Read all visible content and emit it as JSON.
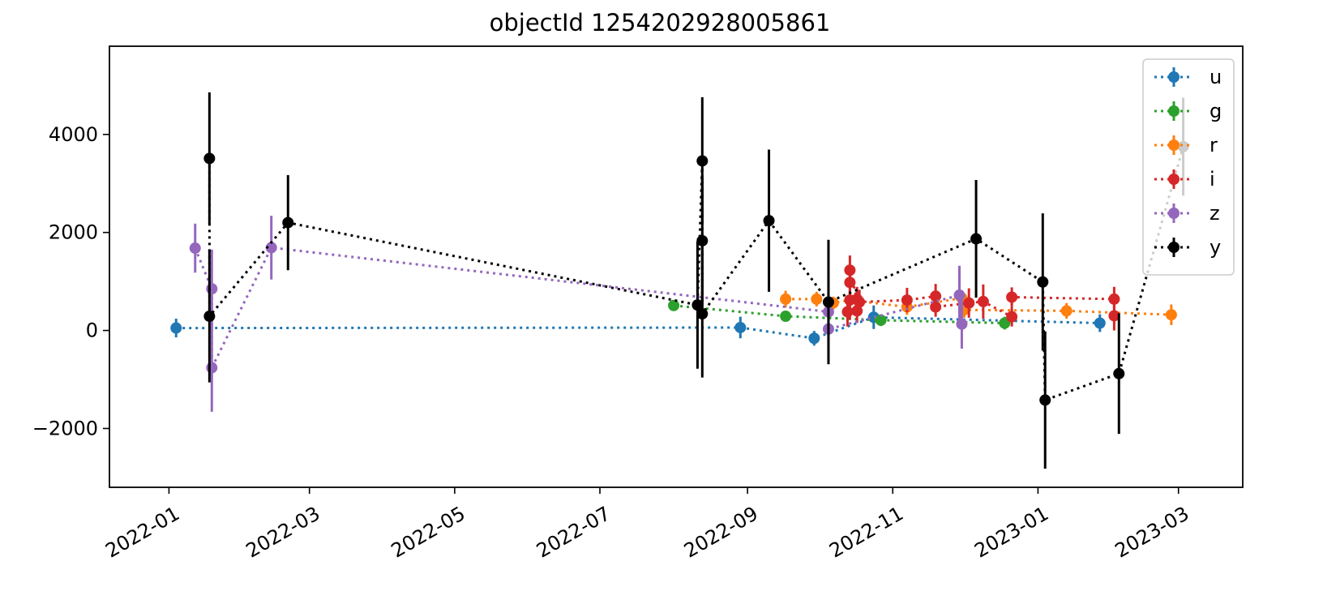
{
  "chart_data": {
    "type": "scatter",
    "title": "objectId 1254202928005861",
    "xlabel": "",
    "ylabel": "",
    "x_axis": "date",
    "xlim": [
      "2021-12-07",
      "2023-03-28"
    ],
    "ylim": [
      -3200,
      5800
    ],
    "x_ticks": [
      "2022-01",
      "2022-03",
      "2022-05",
      "2022-07",
      "2022-09",
      "2022-11",
      "2023-01",
      "2023-03"
    ],
    "y_ticks": [
      -2000,
      0,
      2000,
      4000
    ],
    "y_tick_labels": [
      "−2000",
      "0",
      "2000",
      "4000"
    ],
    "grid": false,
    "legend_position": "top-right",
    "series": [
      {
        "name": "u",
        "color": "#1f77b4",
        "line_style": "dotted",
        "points": [
          {
            "x": "2022-01-04",
            "y": 50,
            "err": 190
          },
          {
            "x": "2022-08-29",
            "y": 60,
            "err": 220
          },
          {
            "x": "2022-09-29",
            "y": -160,
            "err": 150
          },
          {
            "x": "2022-10-24",
            "y": 270,
            "err": 240
          },
          {
            "x": "2023-01-27",
            "y": 150,
            "err": 180
          }
        ]
      },
      {
        "name": "g",
        "color": "#2ca02c",
        "line_style": "dotted",
        "points": [
          {
            "x": "2022-08-01",
            "y": 510,
            "err": 90
          },
          {
            "x": "2022-09-17",
            "y": 290,
            "err": 100
          },
          {
            "x": "2022-10-27",
            "y": 210,
            "err": 120
          },
          {
            "x": "2022-12-18",
            "y": 150,
            "err": 130
          }
        ]
      },
      {
        "name": "r",
        "color": "#ff7f0e",
        "line_style": "dotted",
        "points": [
          {
            "x": "2022-09-17",
            "y": 640,
            "err": 170
          },
          {
            "x": "2022-09-30",
            "y": 640,
            "err": 150
          },
          {
            "x": "2022-10-07",
            "y": 560,
            "err": 130
          },
          {
            "x": "2022-10-14",
            "y": 620,
            "err": 170
          },
          {
            "x": "2022-11-07",
            "y": 480,
            "err": 160
          },
          {
            "x": "2022-11-30",
            "y": 660,
            "err": 160
          },
          {
            "x": "2022-12-01",
            "y": 420,
            "err": 160
          },
          {
            "x": "2023-01-13",
            "y": 400,
            "err": 160
          },
          {
            "x": "2023-02-26",
            "y": 320,
            "err": 210
          }
        ]
      },
      {
        "name": "i",
        "color": "#d62728",
        "line_style": "dotted",
        "points": [
          {
            "x": "2022-10-13",
            "y": 380,
            "err": 300
          },
          {
            "x": "2022-10-14",
            "y": 620,
            "err": 400
          },
          {
            "x": "2022-10-14",
            "y": 980,
            "err": 350
          },
          {
            "x": "2022-10-14",
            "y": 1230,
            "err": 300
          },
          {
            "x": "2022-10-17",
            "y": 640,
            "err": 250
          },
          {
            "x": "2022-10-17",
            "y": 400,
            "err": 250
          },
          {
            "x": "2022-10-18",
            "y": 580,
            "err": 250
          },
          {
            "x": "2022-11-07",
            "y": 620,
            "err": 250
          },
          {
            "x": "2022-11-19",
            "y": 700,
            "err": 250
          },
          {
            "x": "2022-11-19",
            "y": 480,
            "err": 200
          },
          {
            "x": "2022-12-03",
            "y": 560,
            "err": 300
          },
          {
            "x": "2022-12-09",
            "y": 590,
            "err": 350
          },
          {
            "x": "2022-12-21",
            "y": 280,
            "err": 200
          },
          {
            "x": "2022-12-21",
            "y": 680,
            "err": 200
          },
          {
            "x": "2023-02-02",
            "y": 640,
            "err": 250
          },
          {
            "x": "2023-02-02",
            "y": 300,
            "err": 300
          }
        ]
      },
      {
        "name": "z",
        "color": "#9467bd",
        "line_style": "dotted",
        "points": [
          {
            "x": "2022-01-12",
            "y": 1680,
            "err": 500
          },
          {
            "x": "2022-01-19",
            "y": 850,
            "err": 800
          },
          {
            "x": "2022-01-19",
            "y": -760,
            "err": 900
          },
          {
            "x": "2022-02-13",
            "y": 1690,
            "err": 650
          },
          {
            "x": "2022-10-05",
            "y": 380,
            "err": 780
          },
          {
            "x": "2022-10-05",
            "y": 30,
            "err": 600
          },
          {
            "x": "2022-11-29",
            "y": 720,
            "err": 600
          },
          {
            "x": "2022-11-30",
            "y": 130,
            "err": 500
          }
        ]
      },
      {
        "name": "y",
        "color": "#000000",
        "line_style": "dotted",
        "points": [
          {
            "x": "2022-01-18",
            "y": 3510,
            "err": 1350
          },
          {
            "x": "2022-01-18",
            "y": 290,
            "err": 1350
          },
          {
            "x": "2022-02-20",
            "y": 2200,
            "err": 970
          },
          {
            "x": "2022-08-11",
            "y": 520,
            "err": 1300
          },
          {
            "x": "2022-08-13",
            "y": 3460,
            "err": 1300
          },
          {
            "x": "2022-08-13",
            "y": 1830,
            "err": 1300
          },
          {
            "x": "2022-08-13",
            "y": 340,
            "err": 1300
          },
          {
            "x": "2022-09-10",
            "y": 2240,
            "err": 1450
          },
          {
            "x": "2022-10-05",
            "y": 580,
            "err": 1270
          },
          {
            "x": "2022-12-06",
            "y": 1870,
            "err": 1200
          },
          {
            "x": "2023-01-03",
            "y": 990,
            "err": 1400
          },
          {
            "x": "2023-01-04",
            "y": -1420,
            "err": 1400
          },
          {
            "x": "2023-02-04",
            "y": -880,
            "err": 1230
          },
          {
            "x": "2023-03-03",
            "y": 3750,
            "err": 1000
          }
        ]
      }
    ]
  }
}
